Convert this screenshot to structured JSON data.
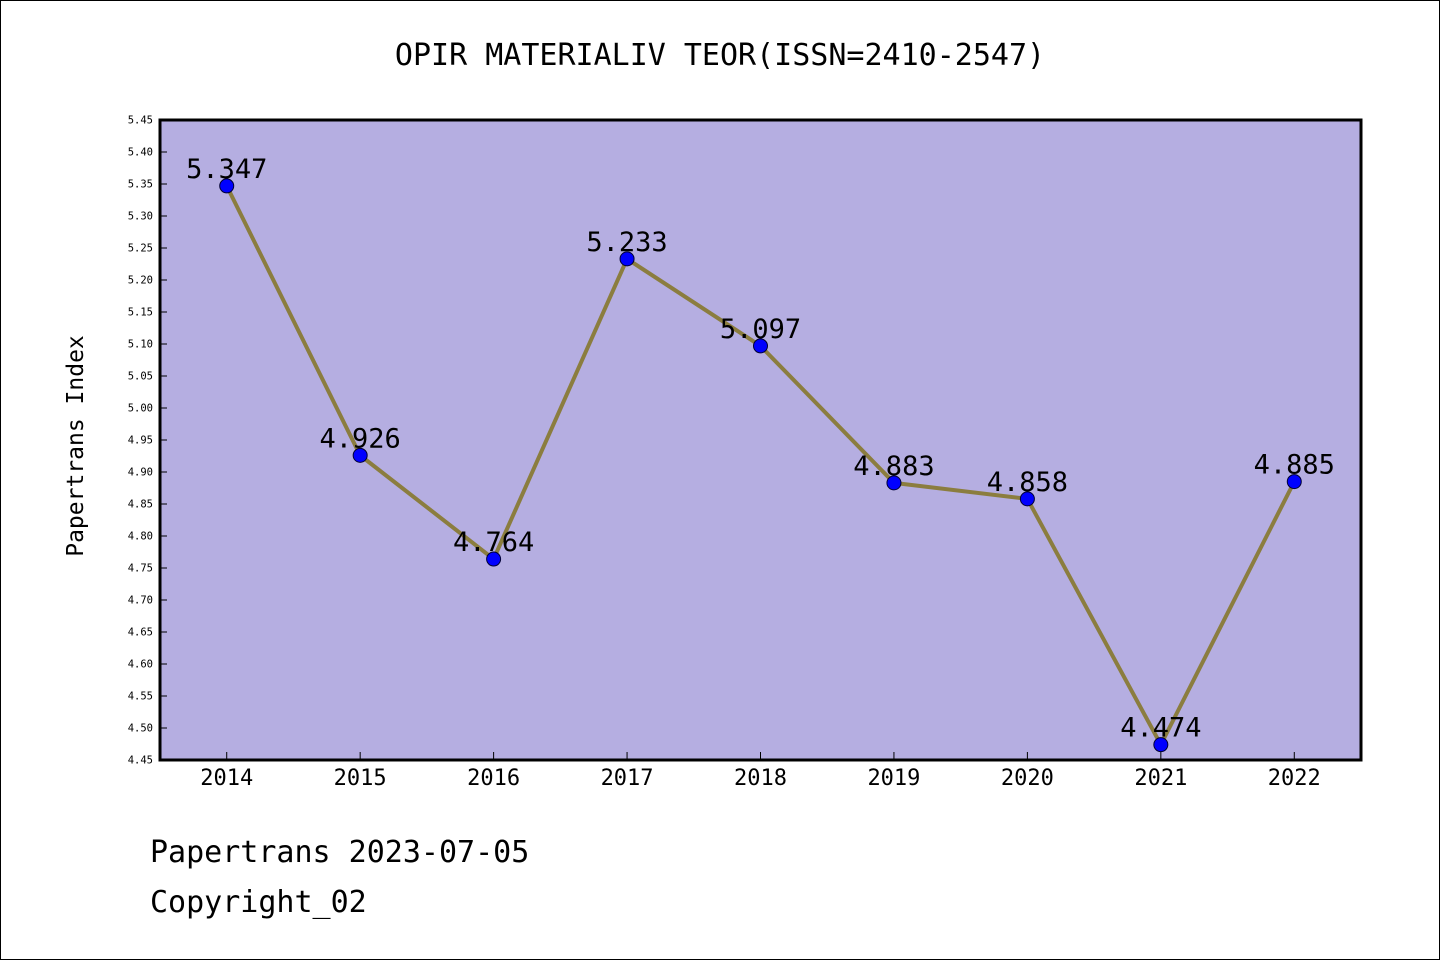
{
  "colors": {
    "plot_background": "#b5aee1",
    "line": "#8b7d3f",
    "marker": "#0000ff",
    "axis": "#000000"
  },
  "chart_data": {
    "type": "line",
    "title": "OPIR MATERIALIV TEOR(ISSN=2410-2547)",
    "xlabel": "",
    "ylabel": "Papertrans Index",
    "categories": [
      "2014",
      "2015",
      "2016",
      "2017",
      "2018",
      "2019",
      "2020",
      "2021",
      "2022"
    ],
    "series": [
      {
        "values": [
          5.347,
          4.926,
          4.764,
          5.233,
          5.097,
          4.883,
          4.858,
          4.474,
          4.885
        ],
        "labels": [
          "5.347",
          "4.926",
          "4.764",
          "5.233",
          "5.097",
          "4.883",
          "4.858",
          "4.474",
          "4.885"
        ]
      }
    ],
    "ylim": [
      4.45,
      5.45
    ],
    "yticks": [
      "4.45",
      "4.50",
      "4.55",
      "4.60",
      "4.65",
      "4.70",
      "4.75",
      "4.80",
      "4.85",
      "4.90",
      "4.95",
      "5.00",
      "5.05",
      "5.10",
      "5.15",
      "5.20",
      "5.25",
      "5.30",
      "5.35",
      "5.40",
      "5.45"
    ],
    "grid": false,
    "legend": "none"
  },
  "footer": {
    "date_line": "Papertrans 2023-07-05",
    "copyright": "Copyright_02"
  }
}
